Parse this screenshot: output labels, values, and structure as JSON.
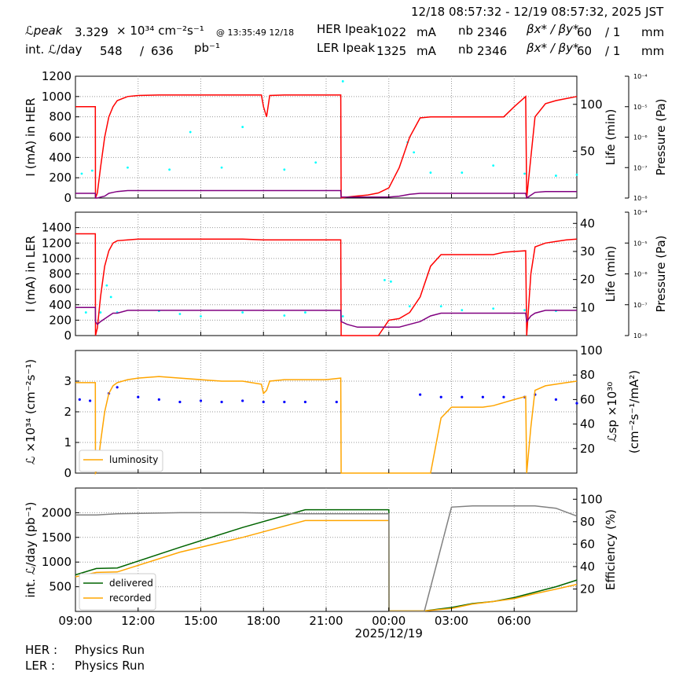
{
  "header": {
    "range": "12/18 08:57:32 - 12/19 08:57:32, 2025 JST",
    "lpeak_label": "ℒpeak",
    "lpeak_value": "3.329",
    "lpeak_unit": "× 10³⁴ cm⁻²s⁻¹",
    "lpeak_time": "@ 13:35:49 12/18",
    "intl_label": "int. ℒ/day",
    "intl_value": "548",
    "intl_sep": "/",
    "intl_total": "636",
    "intl_unit": "pb⁻¹",
    "her_label": "HER Ipeak",
    "her_value": "1022",
    "her_unit": "mA",
    "ler_label": "LER Ipeak",
    "ler_value": "1325",
    "ler_unit": "mA",
    "nb_label": "nb",
    "her_nb": "2346",
    "ler_nb": "2346",
    "beta_label": "βx* / βy*",
    "her_beta": "60",
    "her_beta2": "/ 1",
    "ler_beta": "60",
    "ler_beta2": "/ 1",
    "beta_unit": "mm"
  },
  "footer": {
    "her_label": "HER :",
    "her_status": "Physics Run",
    "ler_label": "LER :",
    "ler_status": "Physics Run"
  },
  "colors": {
    "current": "#ff0000",
    "life": "#800080",
    "pressure": "#00ffff",
    "luminosity": "#ffa500",
    "specific": "#0000ff",
    "delivered": "#006400",
    "recorded": "#ffa500",
    "efficiency": "#808080"
  },
  "chart_data": [
    {
      "id": "her",
      "type": "line",
      "ylabel": "I (mA) in HER",
      "ylim": [
        0,
        1200
      ],
      "yticks": [
        "0",
        "200",
        "400",
        "600",
        "800",
        "1000",
        "1200"
      ],
      "right_label": "Life (min)",
      "right_ylim": [
        0,
        130
      ],
      "right_ticks": [
        "50",
        "100"
      ],
      "pressure_label": "Pressure (Pa)",
      "pressure_ticks": [
        "10⁻⁸",
        "10⁻⁷",
        "10⁻⁶",
        "10⁻⁵",
        "10⁻⁴"
      ],
      "x_hours": [
        0,
        0.95,
        0.96,
        1.05,
        1.2,
        1.4,
        1.6,
        1.8,
        2.0,
        2.5,
        3.0,
        4.0,
        5.0,
        6.0,
        7.0,
        8.0,
        8.9,
        9.0,
        9.15,
        9.3,
        10.0,
        11.0,
        12.0,
        12.7,
        12.72,
        13.0,
        13.5,
        14.0,
        14.5,
        15.0,
        15.5,
        16.0,
        16.5,
        17.0,
        17.5,
        18.0,
        18.5,
        19.0,
        19.5,
        20.0,
        20.5,
        21.0,
        21.55,
        21.6,
        21.8,
        22.0,
        22.5,
        23.0,
        23.5,
        24.0
      ],
      "series": [
        {
          "name": "HER current",
          "y": [
            900,
            900,
            0,
            50,
            300,
            600,
            800,
            900,
            960,
            1000,
            1010,
            1015,
            1015,
            1015,
            1015,
            1015,
            1015,
            900,
            800,
            1010,
            1015,
            1015,
            1015,
            1015,
            0,
            10,
            20,
            30,
            50,
            100,
            300,
            600,
            790,
            800,
            800,
            800,
            800,
            800,
            800,
            800,
            800,
            900,
            1000,
            0,
            400,
            800,
            930,
            960,
            980,
            1000
          ]
        },
        {
          "name": "HER life",
          "y": [
            5,
            5,
            0,
            0,
            1,
            2,
            5,
            6,
            7,
            8,
            8,
            8,
            8,
            8,
            8,
            8,
            8,
            8,
            8,
            8,
            8,
            8,
            8,
            8,
            1,
            1,
            1,
            1,
            1,
            1,
            2,
            4,
            5,
            5,
            5,
            5,
            5,
            5,
            5,
            5,
            5,
            5,
            5,
            0,
            3,
            6,
            7,
            7,
            7,
            7
          ]
        }
      ],
      "pressure_points": [
        [
          0.3,
          240
        ],
        [
          0.8,
          270
        ],
        [
          2.5,
          300
        ],
        [
          4.5,
          280
        ],
        [
          5.5,
          650
        ],
        [
          7.0,
          300
        ],
        [
          8.0,
          700
        ],
        [
          10.0,
          280
        ],
        [
          11.5,
          350
        ],
        [
          12.8,
          1150
        ],
        [
          15.9,
          550
        ],
        [
          16.2,
          450
        ],
        [
          17.0,
          250
        ],
        [
          18.5,
          250
        ],
        [
          20.0,
          320
        ],
        [
          21.5,
          240
        ],
        [
          23.0,
          220
        ],
        [
          24.0,
          230
        ]
      ]
    },
    {
      "id": "ler",
      "type": "line",
      "ylabel": "I (mA) in LER",
      "ylim": [
        0,
        1600
      ],
      "yticks": [
        "0",
        "200",
        "400",
        "600",
        "800",
        "1000",
        "1200",
        "1400"
      ],
      "right_label": "Life (min)",
      "right_ylim": [
        0,
        44
      ],
      "right_ticks": [
        "10",
        "20",
        "30",
        "40"
      ],
      "pressure_label": "Pressure (Pa)",
      "pressure_ticks": [
        "10⁻⁸",
        "10⁻⁷",
        "10⁻⁶",
        "10⁻⁵",
        "10⁻⁴"
      ],
      "x_hours": [
        0,
        0.95,
        0.96,
        1.05,
        1.2,
        1.4,
        1.6,
        1.8,
        2.0,
        2.5,
        3.0,
        4.0,
        5.0,
        6.0,
        7.0,
        8.0,
        9.0,
        10.0,
        11.0,
        12.0,
        12.7,
        12.72,
        13.0,
        13.5,
        14.0,
        14.5,
        15.0,
        15.5,
        16.0,
        16.5,
        17.0,
        17.5,
        18.0,
        18.5,
        19.0,
        19.5,
        20.0,
        20.5,
        21.0,
        21.55,
        21.6,
        21.8,
        22.0,
        22.5,
        23.0,
        23.5,
        24.0
      ],
      "series": [
        {
          "name": "LER current",
          "y": [
            1320,
            1320,
            0,
            100,
            500,
            900,
            1100,
            1200,
            1230,
            1240,
            1250,
            1250,
            1250,
            1250,
            1250,
            1250,
            1240,
            1240,
            1240,
            1240,
            1240,
            0,
            0,
            0,
            0,
            0,
            200,
            220,
            300,
            500,
            900,
            1050,
            1050,
            1050,
            1050,
            1050,
            1050,
            1080,
            1090,
            1100,
            0,
            800,
            1150,
            1200,
            1220,
            1240,
            1250
          ]
        },
        {
          "name": "LER life",
          "y": [
            10,
            10,
            5,
            4,
            5,
            6,
            7,
            8,
            8,
            9,
            9,
            9,
            9,
            9,
            9,
            9,
            9,
            9,
            9,
            9,
            9,
            5,
            4,
            3,
            3,
            3,
            3,
            3,
            4,
            5,
            7,
            8,
            8,
            8,
            8,
            8,
            8,
            8,
            8,
            8,
            5,
            7,
            8,
            9,
            9,
            9,
            9
          ]
        }
      ],
      "pressure_points": [
        [
          0.5,
          300
        ],
        [
          1.2,
          300
        ],
        [
          1.5,
          650
        ],
        [
          1.7,
          500
        ],
        [
          2.0,
          300
        ],
        [
          4.0,
          320
        ],
        [
          5.0,
          280
        ],
        [
          6.0,
          250
        ],
        [
          8.0,
          300
        ],
        [
          10.0,
          260
        ],
        [
          11.0,
          300
        ],
        [
          12.8,
          250
        ],
        [
          14.8,
          720
        ],
        [
          15.1,
          700
        ],
        [
          16.0,
          380
        ],
        [
          17.5,
          380
        ],
        [
          18.5,
          330
        ],
        [
          20.0,
          350
        ],
        [
          21.5,
          330
        ],
        [
          23.0,
          320
        ]
      ]
    },
    {
      "id": "lum",
      "type": "line",
      "ylabel": "ℒ ×10³⁴ (cm⁻²s⁻¹)",
      "ylim": [
        0,
        4
      ],
      "yticks": [
        "0",
        "1",
        "2",
        "3"
      ],
      "right_label": "ℒsp ×10³⁰",
      "right_label2": "(cm⁻²s⁻¹/mA²)",
      "right_ylim": [
        0,
        100
      ],
      "right_ticks": [
        "20",
        "40",
        "60",
        "80",
        "100"
      ],
      "legend": [
        "luminosity"
      ],
      "x_hours": [
        0,
        0.95,
        0.96,
        1.05,
        1.2,
        1.4,
        1.6,
        1.8,
        2.0,
        2.5,
        3.0,
        4.0,
        5.0,
        6.0,
        7.0,
        8.0,
        8.9,
        9.0,
        9.15,
        9.3,
        10.0,
        11.0,
        12.0,
        12.7,
        12.72,
        13.0,
        13.5,
        14.0,
        14.5,
        15.0,
        15.5,
        16.0,
        16.5,
        17.0,
        17.5,
        18.0,
        18.5,
        19.0,
        19.5,
        20.0,
        20.5,
        21.0,
        21.55,
        21.6,
        21.8,
        22.0,
        22.5,
        23.0,
        23.5,
        24.0
      ],
      "series": [
        {
          "name": "luminosity",
          "y": [
            2.95,
            2.95,
            0,
            0.1,
            1.0,
            2.0,
            2.6,
            2.85,
            2.95,
            3.05,
            3.1,
            3.15,
            3.1,
            3.05,
            3.0,
            3.0,
            2.9,
            2.6,
            2.7,
            3.0,
            3.05,
            3.05,
            3.05,
            3.1,
            0,
            0,
            0,
            0,
            0,
            0,
            0,
            0,
            0,
            0,
            1.8,
            2.15,
            2.15,
            2.15,
            2.15,
            2.2,
            2.3,
            2.4,
            2.5,
            0,
            1.5,
            2.7,
            2.85,
            2.9,
            2.95,
            3.0
          ]
        }
      ],
      "specific_points": [
        [
          0.2,
          60
        ],
        [
          0.7,
          59
        ],
        [
          1.6,
          65
        ],
        [
          2.0,
          70
        ],
        [
          3.0,
          62
        ],
        [
          4.0,
          60
        ],
        [
          5.0,
          58
        ],
        [
          6.0,
          59
        ],
        [
          7.0,
          58
        ],
        [
          8.0,
          59
        ],
        [
          9.0,
          58
        ],
        [
          10.0,
          58
        ],
        [
          11.0,
          58
        ],
        [
          12.5,
          58
        ],
        [
          16.5,
          64
        ],
        [
          17.5,
          62
        ],
        [
          18.5,
          62
        ],
        [
          19.5,
          62
        ],
        [
          20.5,
          62
        ],
        [
          21.5,
          62
        ],
        [
          22.0,
          64
        ],
        [
          23.0,
          60
        ],
        [
          24.0,
          57
        ]
      ]
    },
    {
      "id": "int",
      "type": "line",
      "ylabel": "int. ℒ/day (pb⁻¹)",
      "ylim": [
        0,
        2500
      ],
      "yticks": [
        "500",
        "1000",
        "1500",
        "2000"
      ],
      "right_label": "Efficiency (%)",
      "right_ylim": [
        0,
        110
      ],
      "right_ticks": [
        "20",
        "40",
        "60",
        "80",
        "100"
      ],
      "legend": [
        "delivered",
        "recorded"
      ],
      "xticks": [
        "09:00",
        "12:00",
        "15:00",
        "18:00",
        "21:00",
        "00:00",
        "03:00",
        "06:00"
      ],
      "xlabel": "2025/12/19",
      "x_hours": [
        0,
        1.0,
        2.0,
        5.0,
        8.0,
        11.0,
        12.7,
        15.0,
        15.01,
        16.0,
        16.7,
        18.0,
        19.0,
        20.0,
        21.0,
        22.0,
        23.0,
        24.0
      ],
      "series": [
        {
          "name": "delivered",
          "y": [
            740,
            870,
            880,
            1300,
            1700,
            2060,
            2060,
            2060,
            10,
            10,
            10,
            80,
            160,
            200,
            280,
            390,
            500,
            636
          ]
        },
        {
          "name": "recorded",
          "y": [
            700,
            790,
            800,
            1200,
            1500,
            1840,
            1840,
            1840,
            10,
            10,
            10,
            60,
            150,
            200,
            260,
            360,
            450,
            548
          ]
        },
        {
          "name": "efficiency",
          "y": [
            86,
            86,
            87,
            88,
            88,
            87,
            87,
            87,
            0,
            0,
            0,
            93,
            94,
            94,
            94,
            94,
            92,
            85
          ]
        }
      ]
    }
  ]
}
